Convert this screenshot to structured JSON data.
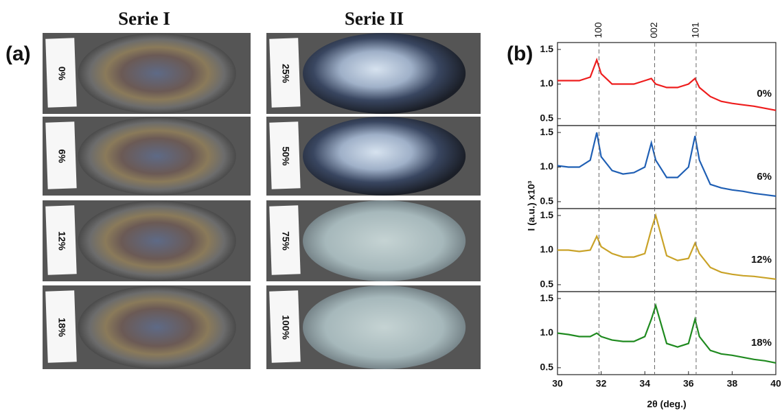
{
  "panel_a": {
    "label": "(a)",
    "series_titles": [
      "Serie I",
      "Serie II"
    ],
    "samples": [
      [
        "0%",
        "6%",
        "12%",
        "18%"
      ],
      [
        "25%",
        "50%",
        "75%",
        "100%"
      ]
    ]
  },
  "panel_b": {
    "label": "(b)",
    "xlabel": "2θ (deg.)",
    "ylabel": "I (a.u.) x10³",
    "peaks": [
      {
        "x": 31.9,
        "label": "100"
      },
      {
        "x": 34.45,
        "label": "002"
      },
      {
        "x": 36.35,
        "label": "101"
      }
    ]
  },
  "chart_data": [
    {
      "type": "line",
      "x": [
        30,
        30.5,
        31,
        31.5,
        31.8,
        32,
        32.5,
        33,
        33.5,
        34,
        34.3,
        34.5,
        35,
        35.5,
        36,
        36.3,
        36.5,
        37,
        37.5,
        38,
        38.5,
        39,
        39.5,
        40
      ],
      "xlim": [
        30,
        40
      ],
      "ylim": [
        0.4,
        1.6
      ],
      "yticks": [
        0.5,
        {
          "value": 1,
          "label": "1.0"
        },
        1.5
      ],
      "series": [
        {
          "name": "0%",
          "color": "#ee1c1c",
          "values": [
            1.05,
            1.05,
            1.05,
            1.1,
            1.35,
            1.15,
            1.0,
            1.0,
            1.0,
            1.05,
            1.08,
            1.0,
            0.95,
            0.95,
            1.0,
            1.08,
            0.95,
            0.82,
            0.75,
            0.72,
            0.7,
            0.68,
            0.65,
            0.62
          ]
        }
      ]
    },
    {
      "type": "line",
      "x": [
        30,
        30.5,
        31,
        31.5,
        31.8,
        32,
        32.5,
        33,
        33.5,
        34,
        34.3,
        34.5,
        35,
        35.5,
        36,
        36.3,
        36.5,
        37,
        37.5,
        38,
        38.5,
        39,
        39.5,
        40
      ],
      "xlim": [
        30,
        40
      ],
      "ylim": [
        0.4,
        1.6
      ],
      "yticks": [
        0.5,
        {
          "value": 1,
          "label": "1.0"
        },
        1.5
      ],
      "series": [
        {
          "name": "6%",
          "color": "#1f5fb4",
          "values": [
            1.02,
            1.0,
            1.0,
            1.1,
            1.5,
            1.15,
            0.95,
            0.9,
            0.92,
            1.0,
            1.35,
            1.1,
            0.85,
            0.85,
            1.0,
            1.45,
            1.1,
            0.75,
            0.7,
            0.67,
            0.65,
            0.62,
            0.6,
            0.58
          ]
        }
      ]
    },
    {
      "type": "line",
      "x": [
        30,
        30.5,
        31,
        31.5,
        31.8,
        32,
        32.5,
        33,
        33.5,
        34,
        34.3,
        34.5,
        35,
        35.5,
        36,
        36.3,
        36.5,
        37,
        37.5,
        38,
        38.5,
        39,
        39.5,
        40
      ],
      "xlim": [
        30,
        40
      ],
      "ylim": [
        0.4,
        1.6
      ],
      "yticks": [
        0.5,
        {
          "value": 1,
          "label": "1.0"
        },
        1.5
      ],
      "series": [
        {
          "name": "12%",
          "color": "#c9a227",
          "values": [
            1.0,
            1.0,
            0.98,
            1.0,
            1.2,
            1.05,
            0.95,
            0.9,
            0.9,
            0.95,
            1.3,
            1.5,
            0.92,
            0.85,
            0.88,
            1.1,
            0.95,
            0.75,
            0.68,
            0.65,
            0.63,
            0.62,
            0.6,
            0.58
          ]
        }
      ]
    },
    {
      "type": "line",
      "x": [
        30,
        30.5,
        31,
        31.5,
        31.8,
        32,
        32.5,
        33,
        33.5,
        34,
        34.3,
        34.5,
        35,
        35.5,
        36,
        36.3,
        36.5,
        37,
        37.5,
        38,
        38.5,
        39,
        39.5,
        40
      ],
      "xlim": [
        30,
        40
      ],
      "ylim": [
        0.4,
        1.6
      ],
      "yticks": [
        0.5,
        {
          "value": 1,
          "label": "1.0"
        },
        1.5
      ],
      "xticks": [
        30,
        32,
        34,
        36,
        38,
        40
      ],
      "series": [
        {
          "name": "18%",
          "color": "#1f8a1f",
          "values": [
            1.0,
            0.98,
            0.95,
            0.95,
            1.0,
            0.95,
            0.9,
            0.88,
            0.88,
            0.95,
            1.2,
            1.4,
            0.85,
            0.8,
            0.85,
            1.2,
            0.95,
            0.75,
            0.7,
            0.68,
            0.65,
            0.62,
            0.6,
            0.57
          ]
        }
      ]
    }
  ]
}
